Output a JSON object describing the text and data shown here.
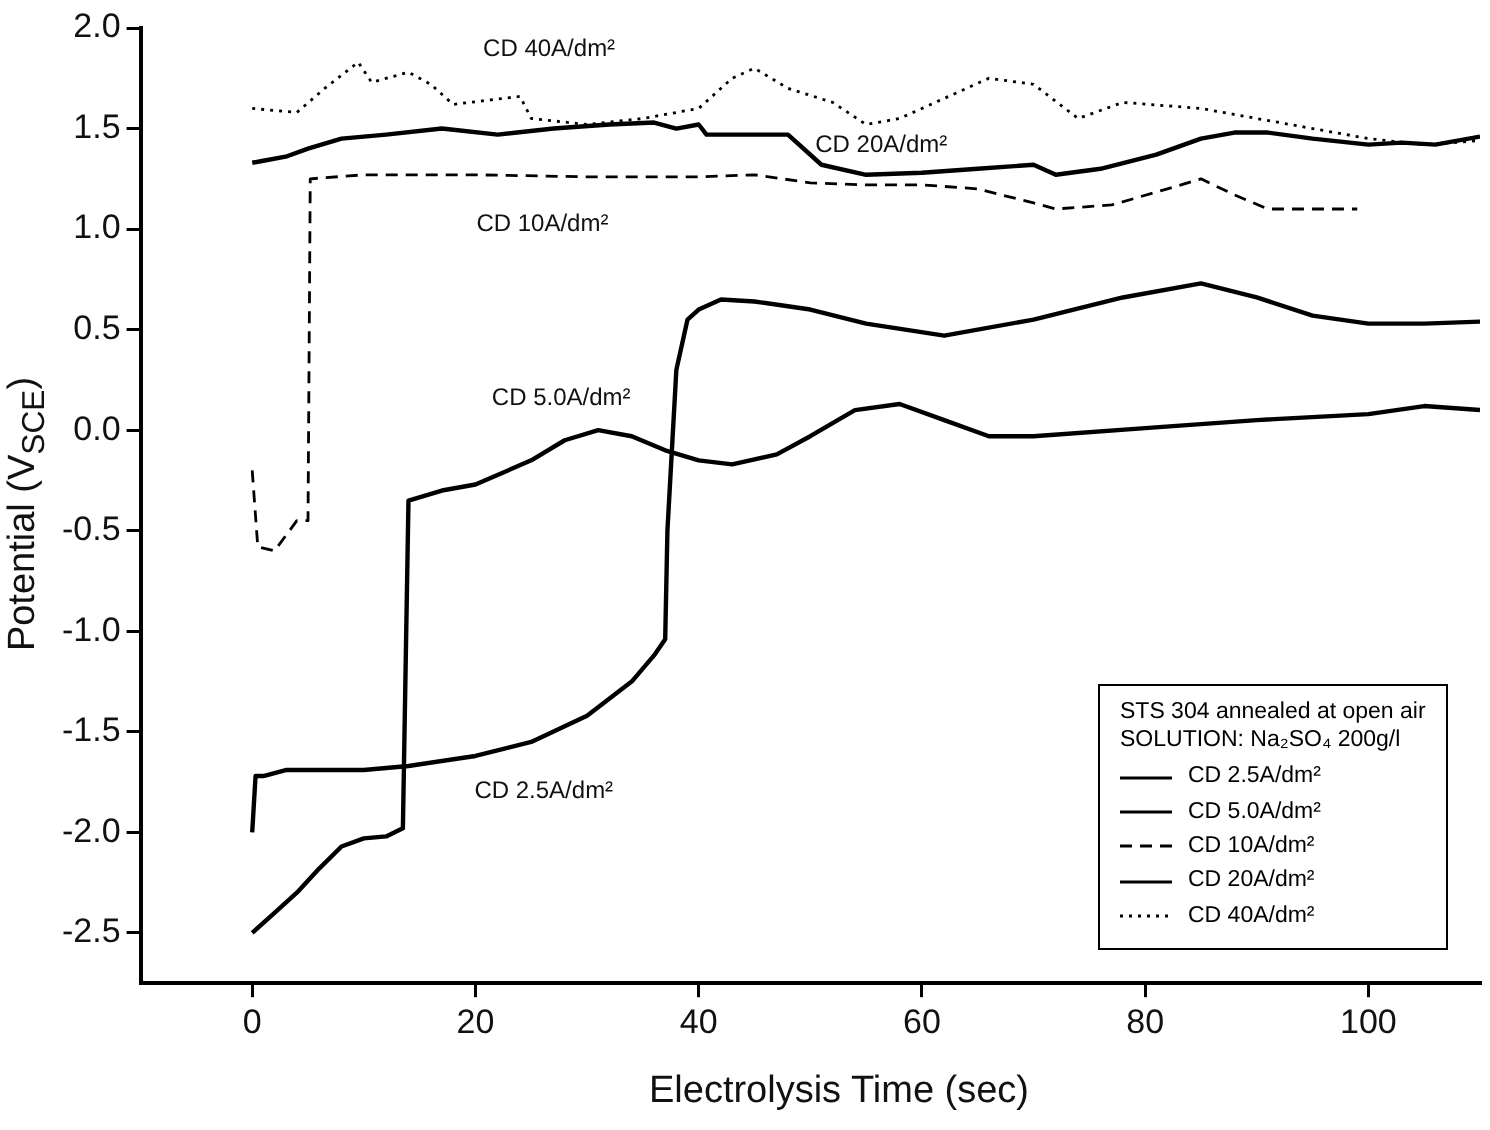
{
  "chart_data": {
    "type": "line",
    "xlabel": "Electrolysis Time (sec)",
    "ylabel": "Potential (V$_{SCE}$)",
    "legend_title": "STS 304 annealed at open air\nSOLUTION: Na₂SO₄ 200g/l",
    "legend": "bottom right",
    "grid": false,
    "xlim": [
      -10,
      110
    ],
    "xticks": [
      0,
      20,
      40,
      60,
      80,
      100
    ],
    "ylim": [
      -2.75,
      2.0
    ],
    "yticks": [
      {
        "value": -2.5,
        "label": "-2.5"
      },
      {
        "value": -2,
        "label": "-2.0"
      },
      {
        "value": -1.5,
        "label": "-1.5"
      },
      {
        "value": -1,
        "label": "-1.0"
      },
      {
        "value": -0.5,
        "label": "-0.5"
      },
      {
        "value": 0,
        "label": "0.0"
      },
      {
        "value": 0.5,
        "label": "0.5"
      },
      {
        "value": 1,
        "label": "1.0"
      },
      {
        "value": 1.5,
        "label": "1.5"
      },
      {
        "value": 2,
        "label": "2.0"
      }
    ],
    "series": [
      {
        "name": "CD 2.5A/dm²",
        "color": "#000000",
        "line_style": "solid",
        "x": [
          0,
          0.3,
          1,
          3,
          5,
          10,
          14,
          20,
          25,
          30,
          34,
          36,
          37,
          37.2,
          38,
          39,
          40,
          42,
          45,
          50,
          55,
          62,
          70,
          78,
          85,
          90,
          95,
          100,
          105,
          110
        ],
        "values": [
          -2.0,
          -1.72,
          -1.72,
          -1.69,
          -1.69,
          -1.69,
          -1.67,
          -1.62,
          -1.55,
          -1.42,
          -1.25,
          -1.12,
          -1.04,
          -0.5,
          0.3,
          0.55,
          0.6,
          0.65,
          0.64,
          0.6,
          0.53,
          0.47,
          0.55,
          0.66,
          0.73,
          0.66,
          0.57,
          0.53,
          0.53,
          0.54
        ]
      },
      {
        "name": "CD 5.0A/dm²",
        "color": "#000000",
        "line_style": "solid",
        "x": [
          0,
          2,
          4,
          6,
          8,
          10,
          12,
          13.5,
          13.8,
          14,
          17,
          20,
          25,
          28,
          31,
          34,
          37,
          40,
          43,
          47,
          50,
          54,
          58,
          62,
          66,
          70,
          80,
          90,
          100,
          105,
          110
        ],
        "values": [
          -2.5,
          -2.4,
          -2.3,
          -2.18,
          -2.07,
          -2.03,
          -2.02,
          -1.98,
          -1.0,
          -0.35,
          -0.3,
          -0.27,
          -0.15,
          -0.05,
          0.0,
          -0.03,
          -0.1,
          -0.15,
          -0.17,
          -0.12,
          -0.03,
          0.1,
          0.13,
          0.05,
          -0.03,
          -0.03,
          0.01,
          0.05,
          0.08,
          0.12,
          0.1
        ]
      },
      {
        "name": "CD 10A/dm²",
        "color": "#000000",
        "line_style": "dashed",
        "x": [
          0,
          0.5,
          2,
          4,
          5,
          5.2,
          10,
          20,
          30,
          40,
          45,
          50,
          55,
          60,
          65,
          70,
          72,
          77,
          82,
          85,
          88,
          91,
          95,
          99
        ],
        "values": [
          -0.2,
          -0.58,
          -0.6,
          -0.45,
          -0.45,
          1.25,
          1.27,
          1.27,
          1.26,
          1.26,
          1.27,
          1.23,
          1.22,
          1.22,
          1.2,
          1.13,
          1.1,
          1.12,
          1.2,
          1.25,
          1.17,
          1.1,
          1.1,
          1.1
        ]
      },
      {
        "name": "CD 20A/dm²",
        "color": "#000000",
        "line_style": "solid",
        "x": [
          0,
          1,
          3,
          5,
          8,
          12,
          17,
          22,
          27,
          32,
          36,
          38,
          40,
          40.7,
          45,
          48,
          51,
          55,
          60,
          65,
          70,
          72,
          76,
          81,
          85,
          88,
          91,
          95,
          100,
          103,
          106,
          110
        ],
        "values": [
          1.33,
          1.34,
          1.36,
          1.4,
          1.45,
          1.47,
          1.5,
          1.47,
          1.5,
          1.52,
          1.53,
          1.5,
          1.52,
          1.47,
          1.47,
          1.47,
          1.32,
          1.27,
          1.28,
          1.3,
          1.32,
          1.27,
          1.3,
          1.37,
          1.45,
          1.48,
          1.48,
          1.45,
          1.42,
          1.43,
          1.42,
          1.46
        ]
      },
      {
        "name": "CD 40A/dm²",
        "color": "#000000",
        "line_style": "dotted",
        "x": [
          0,
          4,
          6.5,
          9.5,
          10.7,
          14,
          16,
          18,
          24,
          25,
          30,
          35,
          40,
          43,
          45,
          48,
          52,
          55,
          58,
          62,
          66,
          70,
          74,
          78,
          85,
          90,
          95,
          100,
          105,
          110
        ],
        "values": [
          1.6,
          1.58,
          1.7,
          1.83,
          1.73,
          1.78,
          1.72,
          1.62,
          1.66,
          1.55,
          1.52,
          1.55,
          1.6,
          1.75,
          1.8,
          1.7,
          1.63,
          1.52,
          1.55,
          1.65,
          1.75,
          1.72,
          1.55,
          1.63,
          1.6,
          1.55,
          1.5,
          1.45,
          1.42,
          1.44
        ]
      }
    ],
    "annotations": [
      "CD 40A/dm²",
      "CD 20A/dm²",
      "CD 10A/dm²",
      "CD 5.0A/dm²",
      "CD 2.5A/dm²"
    ]
  }
}
